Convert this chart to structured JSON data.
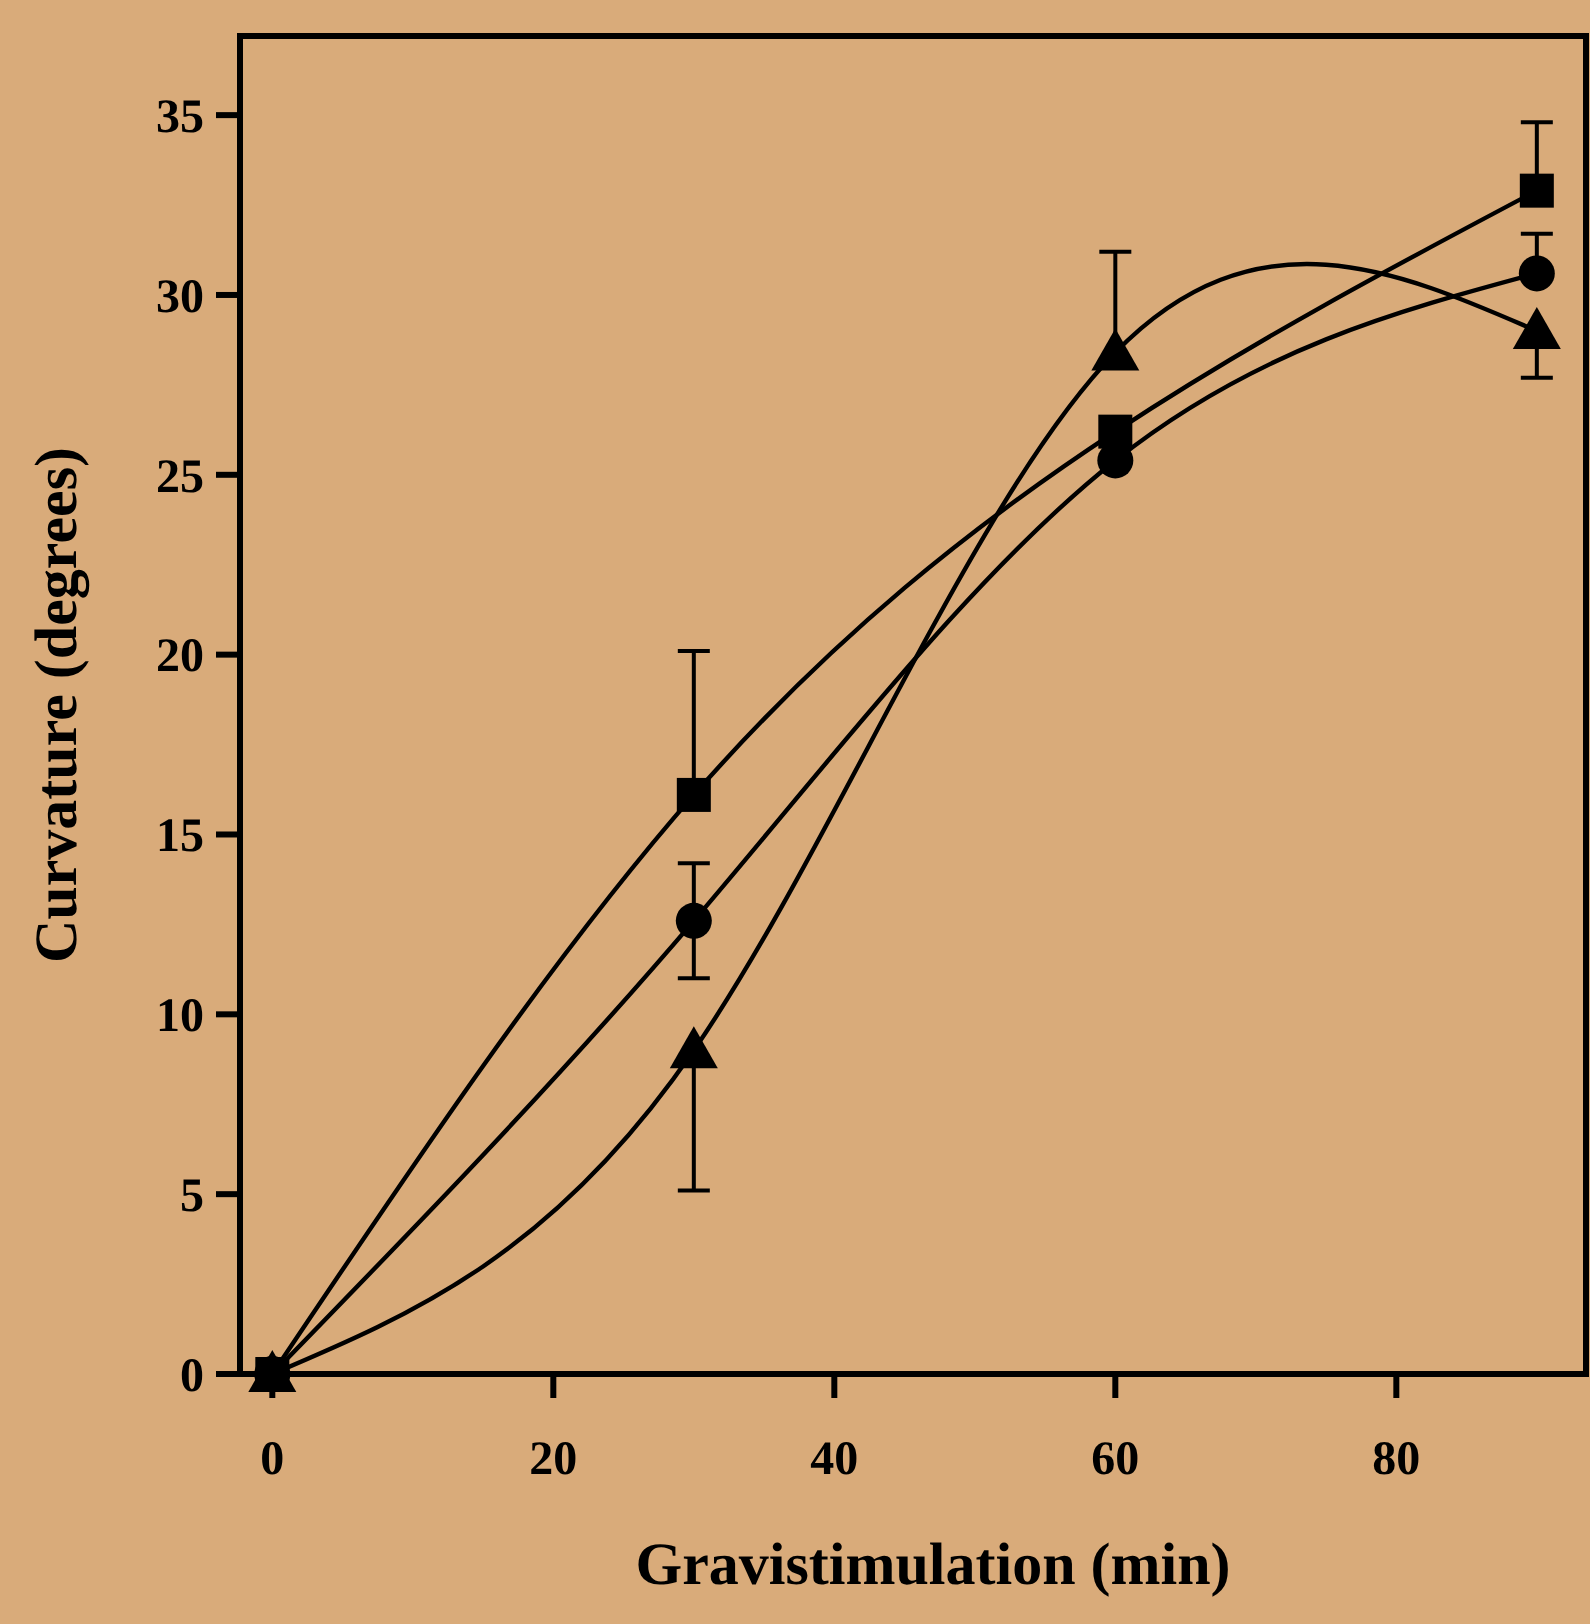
{
  "chart_data": {
    "type": "line",
    "xlabel": "Gravistimulation (min)",
    "ylabel": "Curvature (degrees)",
    "xlim": [
      -2.3,
      93.5
    ],
    "ylim": [
      0,
      37.2
    ],
    "xticks": [
      0,
      20,
      40,
      60,
      80
    ],
    "yticks": [
      0,
      5,
      10,
      15,
      20,
      25,
      30,
      35
    ],
    "grid": false,
    "series": [
      {
        "color": "#000000",
        "marker": "square",
        "x": [
          0,
          30,
          60,
          90
        ],
        "values": [
          0,
          16.1,
          26.2,
          32.9
        ],
        "errors": [
          null,
          [
            16.1,
            20.1
          ],
          null,
          [
            32.9,
            34.8
          ]
        ]
      },
      {
        "color": "#000000",
        "marker": "circle",
        "x": [
          0,
          30,
          60,
          90
        ],
        "values": [
          0,
          12.6,
          25.4,
          30.6
        ],
        "errors": [
          null,
          1.6,
          null,
          [
            30.6,
            31.7
          ]
        ]
      },
      {
        "color": "#000000",
        "marker": "triangle",
        "x": [
          0,
          30,
          60,
          90
        ],
        "values": [
          0,
          9.0,
          28.4,
          29.0
        ],
        "errors": [
          null,
          [
            5.1,
            9.0
          ],
          [
            28.4,
            31.2
          ],
          [
            27.7,
            29.0
          ]
        ]
      }
    ]
  }
}
